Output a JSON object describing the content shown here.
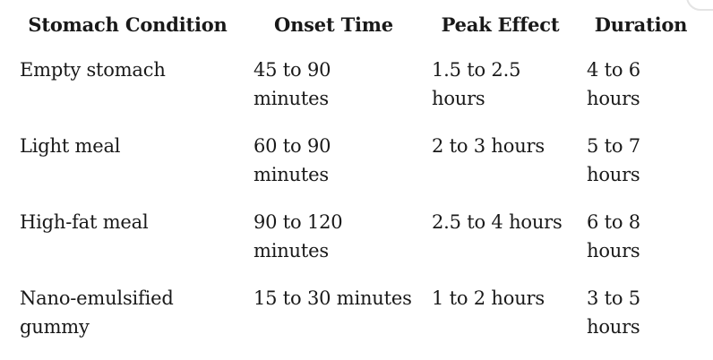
{
  "page": {
    "background_color": "#ffffff",
    "text_color": "#191919",
    "border_artifact_color": "#e4e4e4"
  },
  "table": {
    "headers": {
      "condition": "Stomach Condition",
      "onset": "Onset Time",
      "peak": "Peak Effect",
      "duration": "Duration"
    },
    "rows": [
      {
        "condition": "Empty stomach",
        "onset": "45 to 90\nminutes",
        "peak": "1.5 to 2.5\nhours",
        "duration": "4 to 6\nhours"
      },
      {
        "condition": "Light meal",
        "onset": "60 to 90\nminutes",
        "peak": "2 to 3 hours",
        "duration": "5 to 7\nhours"
      },
      {
        "condition": "High-fat meal",
        "onset": "90 to 120\nminutes",
        "peak": "2.5 to 4 hours",
        "duration": "6 to 8\nhours"
      },
      {
        "condition": "Nano-emulsified\ngummy",
        "onset": "15 to 30 minutes",
        "peak": "1 to 2 hours",
        "duration": "3 to 5\nhours"
      }
    ]
  },
  "chart_data": {
    "type": "table",
    "columns": [
      "Stomach Condition",
      "Onset Time",
      "Peak Effect",
      "Duration"
    ],
    "rows": [
      [
        "Empty stomach",
        "45 to 90 minutes",
        "1.5 to 2.5 hours",
        "4 to 6 hours"
      ],
      [
        "Light meal",
        "60 to 90 minutes",
        "2 to 3 hours",
        "5 to 7 hours"
      ],
      [
        "High-fat meal",
        "90 to 120 minutes",
        "2.5 to 4 hours",
        "6 to 8 hours"
      ],
      [
        "Nano-emulsified gummy",
        "15 to 30 minutes",
        "1 to 2 hours",
        "3 to 5 hours"
      ]
    ]
  }
}
